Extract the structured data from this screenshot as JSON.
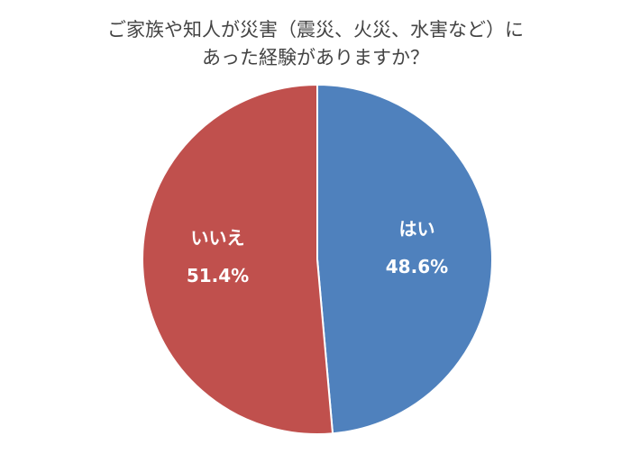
{
  "chart_data": {
    "type": "pie",
    "title_lines": [
      "ご家族や知人が災害（震災、火災、水害など）に",
      "あった経験がありますか？"
    ],
    "start_angle_deg": 0,
    "direction": "clockwise",
    "slices": [
      {
        "label": "はい",
        "value": 48.6,
        "value_label": "48.6%",
        "color": "#4F81BD"
      },
      {
        "label": "いいえ",
        "value": 51.4,
        "value_label": "51.4%",
        "color": "#C0504D"
      }
    ]
  }
}
